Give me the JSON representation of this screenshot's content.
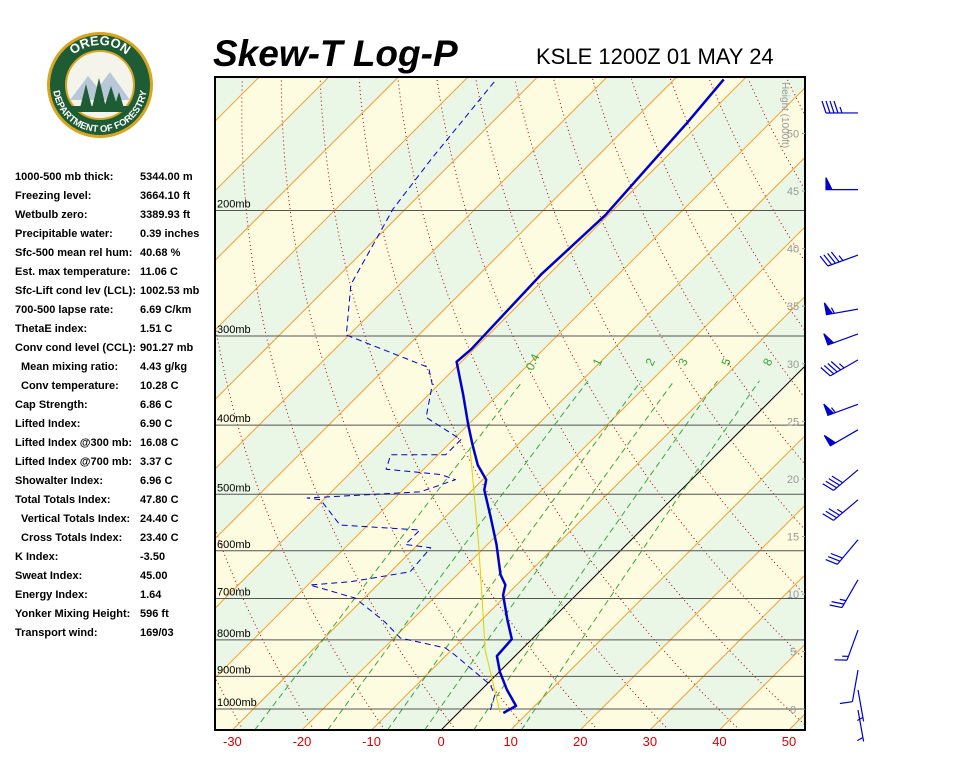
{
  "logo": {
    "top": "OREGON",
    "bottom": "DEPARTMENT OF FORESTRY"
  },
  "indices": {
    "rows": [
      [
        "1000-500 mb thick:",
        "5344.00 m"
      ],
      [
        "Freezing level:",
        "3664.10 ft"
      ],
      [
        "Wetbulb zero:",
        "3389.93 ft"
      ],
      [
        "Precipitable water:",
        "0.39 inches"
      ],
      [
        "Sfc-500 mean rel hum:",
        "40.68 %"
      ],
      [
        "Est. max temperature:",
        "11.06 C"
      ],
      [
        "Sfc-Lift cond lev (LCL):",
        "1002.53 mb"
      ],
      [
        "700-500 lapse rate:",
        "6.69 C/km"
      ],
      [
        "ThetaE index:",
        "1.51 C"
      ],
      [
        "Conv cond level (CCL):",
        "901.27 mb"
      ],
      [
        "Mean mixing ratio:",
        "4.43 g/kg"
      ],
      [
        "Conv temperature:",
        "10.28 C"
      ],
      [
        "Cap Strength:",
        "6.86 C"
      ],
      [
        "Lifted Index:",
        "6.90 C"
      ],
      [
        "Lifted Index @300 mb:",
        "16.08 C"
      ],
      [
        "Lifted Index @700 mb:",
        "3.37 C"
      ],
      [
        "Showalter Index:",
        "6.96 C"
      ],
      [
        "Total Totals Index:",
        "47.80 C"
      ],
      [
        "Vertical Totals Index:",
        "24.40 C"
      ],
      [
        "Cross Totals Index:",
        "23.40 C"
      ],
      [
        "K Index:",
        "-3.50"
      ],
      [
        "Sweat Index:",
        "45.00"
      ],
      [
        "Energy Index:",
        "1.64"
      ],
      [
        "Yonker Mixing Height:",
        "596 ft"
      ],
      [
        "Transport wind:",
        "169/03"
      ]
    ]
  },
  "chart_data": {
    "type": "skewt",
    "title": "Skew-T Log-P",
    "subtitle": "KSLE 1200Z 01 MAY 24",
    "xlim": [
      -32.5,
      52.3
    ],
    "xticks": [
      -30,
      -20,
      -10,
      0,
      10,
      20,
      30,
      40,
      50
    ],
    "ylim": [
      1070,
      130
    ],
    "yscale": "log",
    "yticks": [
      {
        "value": 200,
        "label": "200mb"
      },
      {
        "value": 300,
        "label": "300mb"
      },
      {
        "value": 400,
        "label": "400mb"
      },
      {
        "value": 500,
        "label": "500mb"
      },
      {
        "value": 600,
        "label": "600mb"
      },
      {
        "value": 700,
        "label": "700mb"
      },
      {
        "value": 800,
        "label": "800mb"
      },
      {
        "value": 900,
        "label": "900mb"
      },
      {
        "value": 1000,
        "label": "1000mb"
      }
    ],
    "y2label": "Height (1000ft)",
    "y2lim": [
      -1.8,
      54.9
    ],
    "y2ticks": [
      0,
      5,
      10,
      15,
      20,
      25,
      30,
      35,
      40,
      45,
      50
    ],
    "mixing_ratio_lines": [
      0.4,
      1,
      2,
      3,
      5,
      8
    ],
    "profiles": [
      {
        "color": "#0000cc",
        "width": 2.5,
        "dashed": false,
        "pressure": [
          1013,
          990,
          940,
          887,
          843,
          798,
          750,
          692,
          670,
          648,
          588,
          537,
          493,
          477,
          455,
          426,
          400,
          362,
          326,
          313,
          246,
          203,
          151,
          131
        ],
        "values": [
          6.5,
          7.3,
          3.7,
          0.1,
          -2.6,
          -2.9,
          -6.3,
          -10.5,
          -11.6,
          -13.8,
          -18.7,
          -23.6,
          -28.3,
          -29.5,
          -32.8,
          -36.5,
          -39.9,
          -45.1,
          -50.7,
          -50.4,
          -51.1,
          -50.4,
          -51.9,
          -52.9
        ]
      },
      {
        "color": "#0000cc",
        "width": 1,
        "dashed": true,
        "pressure": [
          1003,
          956,
          925,
          840,
          821,
          795,
          755,
          699,
          670,
          663,
          642,
          594,
          588,
          561,
          552,
          509,
          506,
          496,
          477,
          469,
          461,
          440,
          440,
          419,
          390,
          351,
          332,
          299,
          254,
          199,
          169,
          131
        ],
        "values": [
          4.2,
          2.7,
          0.6,
          -8.8,
          -11.2,
          -19.1,
          -23.6,
          -31.3,
          -39.7,
          -34.3,
          -27.2,
          -27.7,
          -31.8,
          -31.8,
          -44.0,
          -50.4,
          -52.6,
          -37.2,
          -33.9,
          -36.8,
          -45.4,
          -46.8,
          -38.9,
          -38.9,
          -47.1,
          -50.9,
          -53.9,
          -70.4,
          -77.0,
          -81.8,
          -83.5,
          -85.6
        ]
      },
      {
        "color": "#e0d000",
        "width": 1,
        "dashed": false,
        "pressure": [
          1010,
          826,
          703,
          579,
          433
        ],
        "values": [
          5.9,
          -5.2,
          -12.8,
          -22.0,
          -36.1
        ]
      }
    ],
    "winds": {
      "color": "#0000cc",
      "pressure": [
        146,
        187,
        231,
        275,
        298,
        324,
        374,
        406,
        462,
        509,
        579,
        659,
        775,
        882,
        940,
        1003
      ],
      "direction": [
        270,
        270,
        250,
        260,
        250,
        240,
        250,
        240,
        230,
        230,
        220,
        210,
        200,
        190,
        170,
        170
      ],
      "speed": [
        45,
        50,
        45,
        55,
        50,
        45,
        55,
        50,
        40,
        35,
        30,
        25,
        15,
        10,
        5,
        3
      ]
    }
  }
}
